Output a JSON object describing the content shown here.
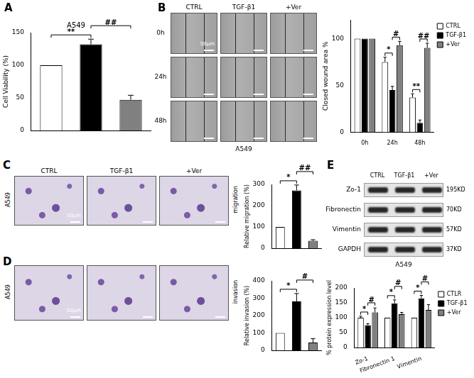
{
  "chart_data": [
    {
      "panel": "A",
      "type": "bar",
      "title": "A549",
      "y_label": "Cell Viability (%)",
      "categories": [
        null,
        null,
        null
      ],
      "values": [
        100,
        132,
        47
      ],
      "errors": [
        0,
        8,
        7
      ],
      "colors": [
        "#ffffff",
        "#000000",
        "#808080"
      ],
      "ylim": [
        0,
        150
      ],
      "yticks": [
        0,
        50,
        100,
        150
      ],
      "grid": false,
      "tick_labels": "y",
      "annotations": [
        {
          "text": "**",
          "from": 0,
          "to": 1
        },
        {
          "text": "##",
          "from": 1,
          "to": 2
        }
      ]
    },
    {
      "panel": "B",
      "type": "bar",
      "y_label": "Closed wound area %",
      "categories": [
        "0h",
        "24h",
        "48h"
      ],
      "series": [
        {
          "name": "CTRL",
          "color": "#ffffff",
          "values": [
            100,
            75,
            37
          ],
          "errors": [
            0,
            5,
            4
          ]
        },
        {
          "name": "TGF-β1",
          "color": "#000000",
          "values": [
            100,
            45,
            10
          ],
          "errors": [
            0,
            4,
            3
          ]
        },
        {
          "name": "+Ver",
          "color": "#808080",
          "values": [
            100,
            93,
            90
          ],
          "errors": [
            0,
            4,
            5
          ]
        }
      ],
      "ylim": [
        0,
        120
      ],
      "yticks": [
        0,
        50,
        100
      ],
      "grid": false,
      "legend": "upper right",
      "annotations": [
        {
          "text": "*",
          "category": "24h",
          "from": "CTRL",
          "to": "TGF-β1"
        },
        {
          "text": "#",
          "category": "24h",
          "from": "TGF-β1",
          "to": "+Ver"
        },
        {
          "text": "**",
          "category": "48h",
          "from": "CTRL",
          "to": "TGF-β1"
        },
        {
          "text": "##",
          "category": "48h",
          "from": "TGF-β1",
          "to": "+Ver"
        }
      ]
    },
    {
      "panel": "C",
      "type": "bar",
      "y_label": "Relative migration (%)",
      "categories": [
        null,
        null,
        null
      ],
      "values": [
        100,
        272,
        35
      ],
      "errors": [
        0,
        25,
        5
      ],
      "colors": [
        "#ffffff",
        "#000000",
        "#808080"
      ],
      "ylim": [
        0,
        300
      ],
      "yticks": [
        0,
        100,
        200,
        300
      ],
      "grid": false,
      "tick_labels": "y",
      "annotations": [
        {
          "text": "*",
          "from": 0,
          "to": 1
        },
        {
          "text": "##",
          "from": 1,
          "to": 2
        }
      ]
    },
    {
      "panel": "D",
      "type": "bar",
      "y_label": "Relative invasion (%)",
      "categories": [
        null,
        null,
        null
      ],
      "values": [
        100,
        282,
        45
      ],
      "errors": [
        0,
        45,
        22
      ],
      "colors": [
        "#ffffff",
        "#000000",
        "#808080"
      ],
      "ylim": [
        0,
        400
      ],
      "yticks": [
        0,
        100,
        200,
        300,
        400
      ],
      "grid": false,
      "tick_labels": "y",
      "annotations": [
        {
          "text": "*",
          "from": 0,
          "to": 1
        },
        {
          "text": "#",
          "from": 1,
          "to": 2
        }
      ]
    },
    {
      "panel": "E",
      "type": "bar",
      "y_label": "% protein expression level",
      "categories": [
        "Zo-1",
        "Fibronectin 1",
        "Vimentin"
      ],
      "series": [
        {
          "name": "CTLR",
          "color": "#ffffff",
          "values": [
            100,
            100,
            100
          ],
          "errors": [
            5,
            0,
            0
          ]
        },
        {
          "name": "TGF-β1",
          "color": "#000000",
          "values": [
            75,
            148,
            165
          ],
          "errors": [
            5,
            12,
            10
          ]
        },
        {
          "name": "+Ver",
          "color": "#808080",
          "values": [
            118,
            112,
            126
          ],
          "errors": [
            15,
            6,
            18
          ]
        }
      ],
      "ylim": [
        0,
        200
      ],
      "yticks": [
        0,
        50,
        100,
        150,
        200
      ],
      "grid": false,
      "legend": "upper right",
      "annotations": [
        {
          "text": "*",
          "category": "Zo-1",
          "from": "CTLR",
          "to": "TGF-β1"
        },
        {
          "text": "#",
          "category": "Zo-1",
          "from": "TGF-β1",
          "to": "+Ver"
        },
        {
          "text": "*",
          "category": "Fibronectin 1",
          "from": "CTLR",
          "to": "TGF-β1"
        },
        {
          "text": "#",
          "category": "Fibronectin 1",
          "from": "TGF-β1",
          "to": "+Ver"
        },
        {
          "text": "*",
          "category": "Vimentin",
          "from": "CTLR",
          "to": "TGF-β1"
        },
        {
          "text": "#",
          "category": "Vimentin",
          "from": "TGF-β1",
          "to": "+Ver"
        }
      ]
    }
  ],
  "images": {
    "B": {
      "columns": [
        "CTRL",
        "TGF-β1",
        "+Ver"
      ],
      "rows": [
        "0h",
        "24h",
        "48h"
      ],
      "scale_bar": "50μm",
      "caption": "A549"
    },
    "C": {
      "columns": [
        "CTRL",
        "TGF-β1",
        "+Ver"
      ],
      "row_label": "A549",
      "side_label": "migration",
      "scale_bar": "50μm"
    },
    "D": {
      "row_label": "A549",
      "side_label": "invasion",
      "scale_bar": "50μm"
    },
    "E": {
      "lanes": [
        "CTRL",
        "TGF-β1",
        "+Ver"
      ],
      "bands": [
        {
          "name": "Zo-1",
          "size": "195KD"
        },
        {
          "name": "Fibronectin",
          "size": "70KD"
        },
        {
          "name": "Vimentin",
          "size": "57KD"
        },
        {
          "name": "GAPDH",
          "size": "37KD"
        }
      ],
      "caption": "A549"
    }
  }
}
